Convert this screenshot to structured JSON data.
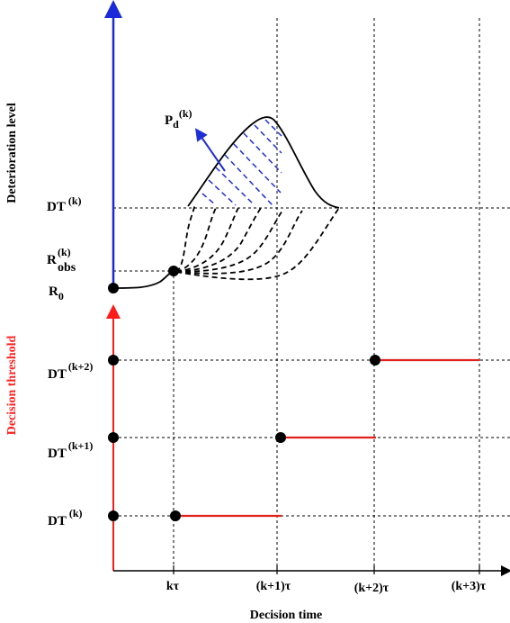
{
  "title": "",
  "colors": {
    "deterioration_axis": "#1a2ad8",
    "threshold_axis": "#ff1a1a",
    "threshold_segment": "#e0201b",
    "hatch": "#1f2fd6",
    "axis_label_red": "#ff2020"
  },
  "axes": {
    "x_label": "Decision time",
    "y_top_label": "Deterioration level",
    "y_bottom_label": "Decision threshold"
  },
  "x_ticks": [
    "kτ",
    "(k+1)τ",
    "(k+2)τ",
    "(k+3)τ"
  ],
  "top_panel": {
    "r0_base": "R",
    "r0_sub": "0",
    "robs_base": "R",
    "robs_sub": "obs",
    "robs_sup": "(k)",
    "dt_base": "DT",
    "dt_sup": "(k)",
    "pd_base": "P",
    "pd_sub": "d",
    "pd_sup": "(k)"
  },
  "bottom_panel": {
    "levels": [
      {
        "base": "DT",
        "sup": "(k+2)"
      },
      {
        "base": "DT",
        "sup": "(k+1)"
      },
      {
        "base": "DT",
        "sup": "(k)"
      }
    ]
  }
}
